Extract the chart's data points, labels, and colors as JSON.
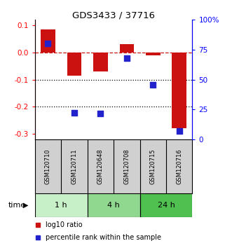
{
  "title": "GDS3433 / 37716",
  "samples": [
    "GSM120710",
    "GSM120711",
    "GSM120648",
    "GSM120708",
    "GSM120715",
    "GSM120716"
  ],
  "log10_ratio": [
    0.085,
    -0.085,
    -0.07,
    0.03,
    -0.01,
    -0.28
  ],
  "percentile_rank": [
    0.8,
    0.22,
    0.215,
    0.68,
    0.455,
    0.07
  ],
  "groups": [
    {
      "label": "1 h",
      "indices": [
        0,
        1
      ],
      "color": "#c8f0c8"
    },
    {
      "label": "4 h",
      "indices": [
        2,
        3
      ],
      "color": "#90d890"
    },
    {
      "label": "24 h",
      "indices": [
        4,
        5
      ],
      "color": "#50c050"
    }
  ],
  "ylim_left": [
    -0.32,
    0.12
  ],
  "ylim_right": [
    0,
    1.0
  ],
  "yticks_left": [
    0.1,
    0.0,
    -0.1,
    -0.2,
    -0.3
  ],
  "yticks_right_vals": [
    1.0,
    0.75,
    0.5,
    0.25,
    0.0
  ],
  "yticks_right_labels": [
    "100%",
    "75",
    "50",
    "25",
    "0"
  ],
  "bar_color": "#cc1111",
  "dot_color": "#2222cc",
  "ref_line_color": "#cc1111",
  "bg_color": "#ffffff",
  "bar_width": 0.55,
  "dot_size": 40,
  "time_label": "time",
  "sample_bg": "#d0d0d0",
  "legend_items": [
    {
      "color": "#cc1111",
      "label": "log10 ratio"
    },
    {
      "color": "#2222cc",
      "label": "percentile rank within the sample"
    }
  ]
}
